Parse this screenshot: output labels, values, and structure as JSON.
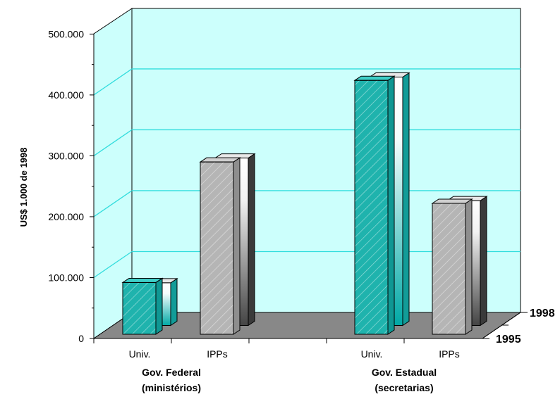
{
  "chart_data": {
    "type": "bar",
    "ylabel": "US$ 1.000 de 1998",
    "ylim": [
      0,
      500000
    ],
    "y_ticks": [
      "0",
      "100.000",
      "200.000",
      "300.000",
      "400.000",
      "500.000"
    ],
    "y_tick_values": [
      0,
      100000,
      200000,
      300000,
      400000,
      500000
    ],
    "categories": [
      "Univ.",
      "IPPs",
      "Univ.",
      "IPPs"
    ],
    "groups": [
      {
        "label_line1": "Gov. Federal",
        "label_line2": "(ministérios)"
      },
      {
        "label_line1": "Gov. Estadual",
        "label_line2": "(secretarias)"
      }
    ],
    "series": [
      {
        "name": "1995",
        "values": [
          85000,
          283000,
          417000,
          215000
        ]
      },
      {
        "name": "1998",
        "values": [
          70000,
          275000,
          408000,
          205000
        ]
      }
    ],
    "grid": true,
    "colors": {
      "univ_front": "#1fb3ad",
      "ipp_front": "#b5b5b5",
      "wall": "#ccfffc",
      "gridline": "#33dddd",
      "floor": "#888888"
    }
  }
}
